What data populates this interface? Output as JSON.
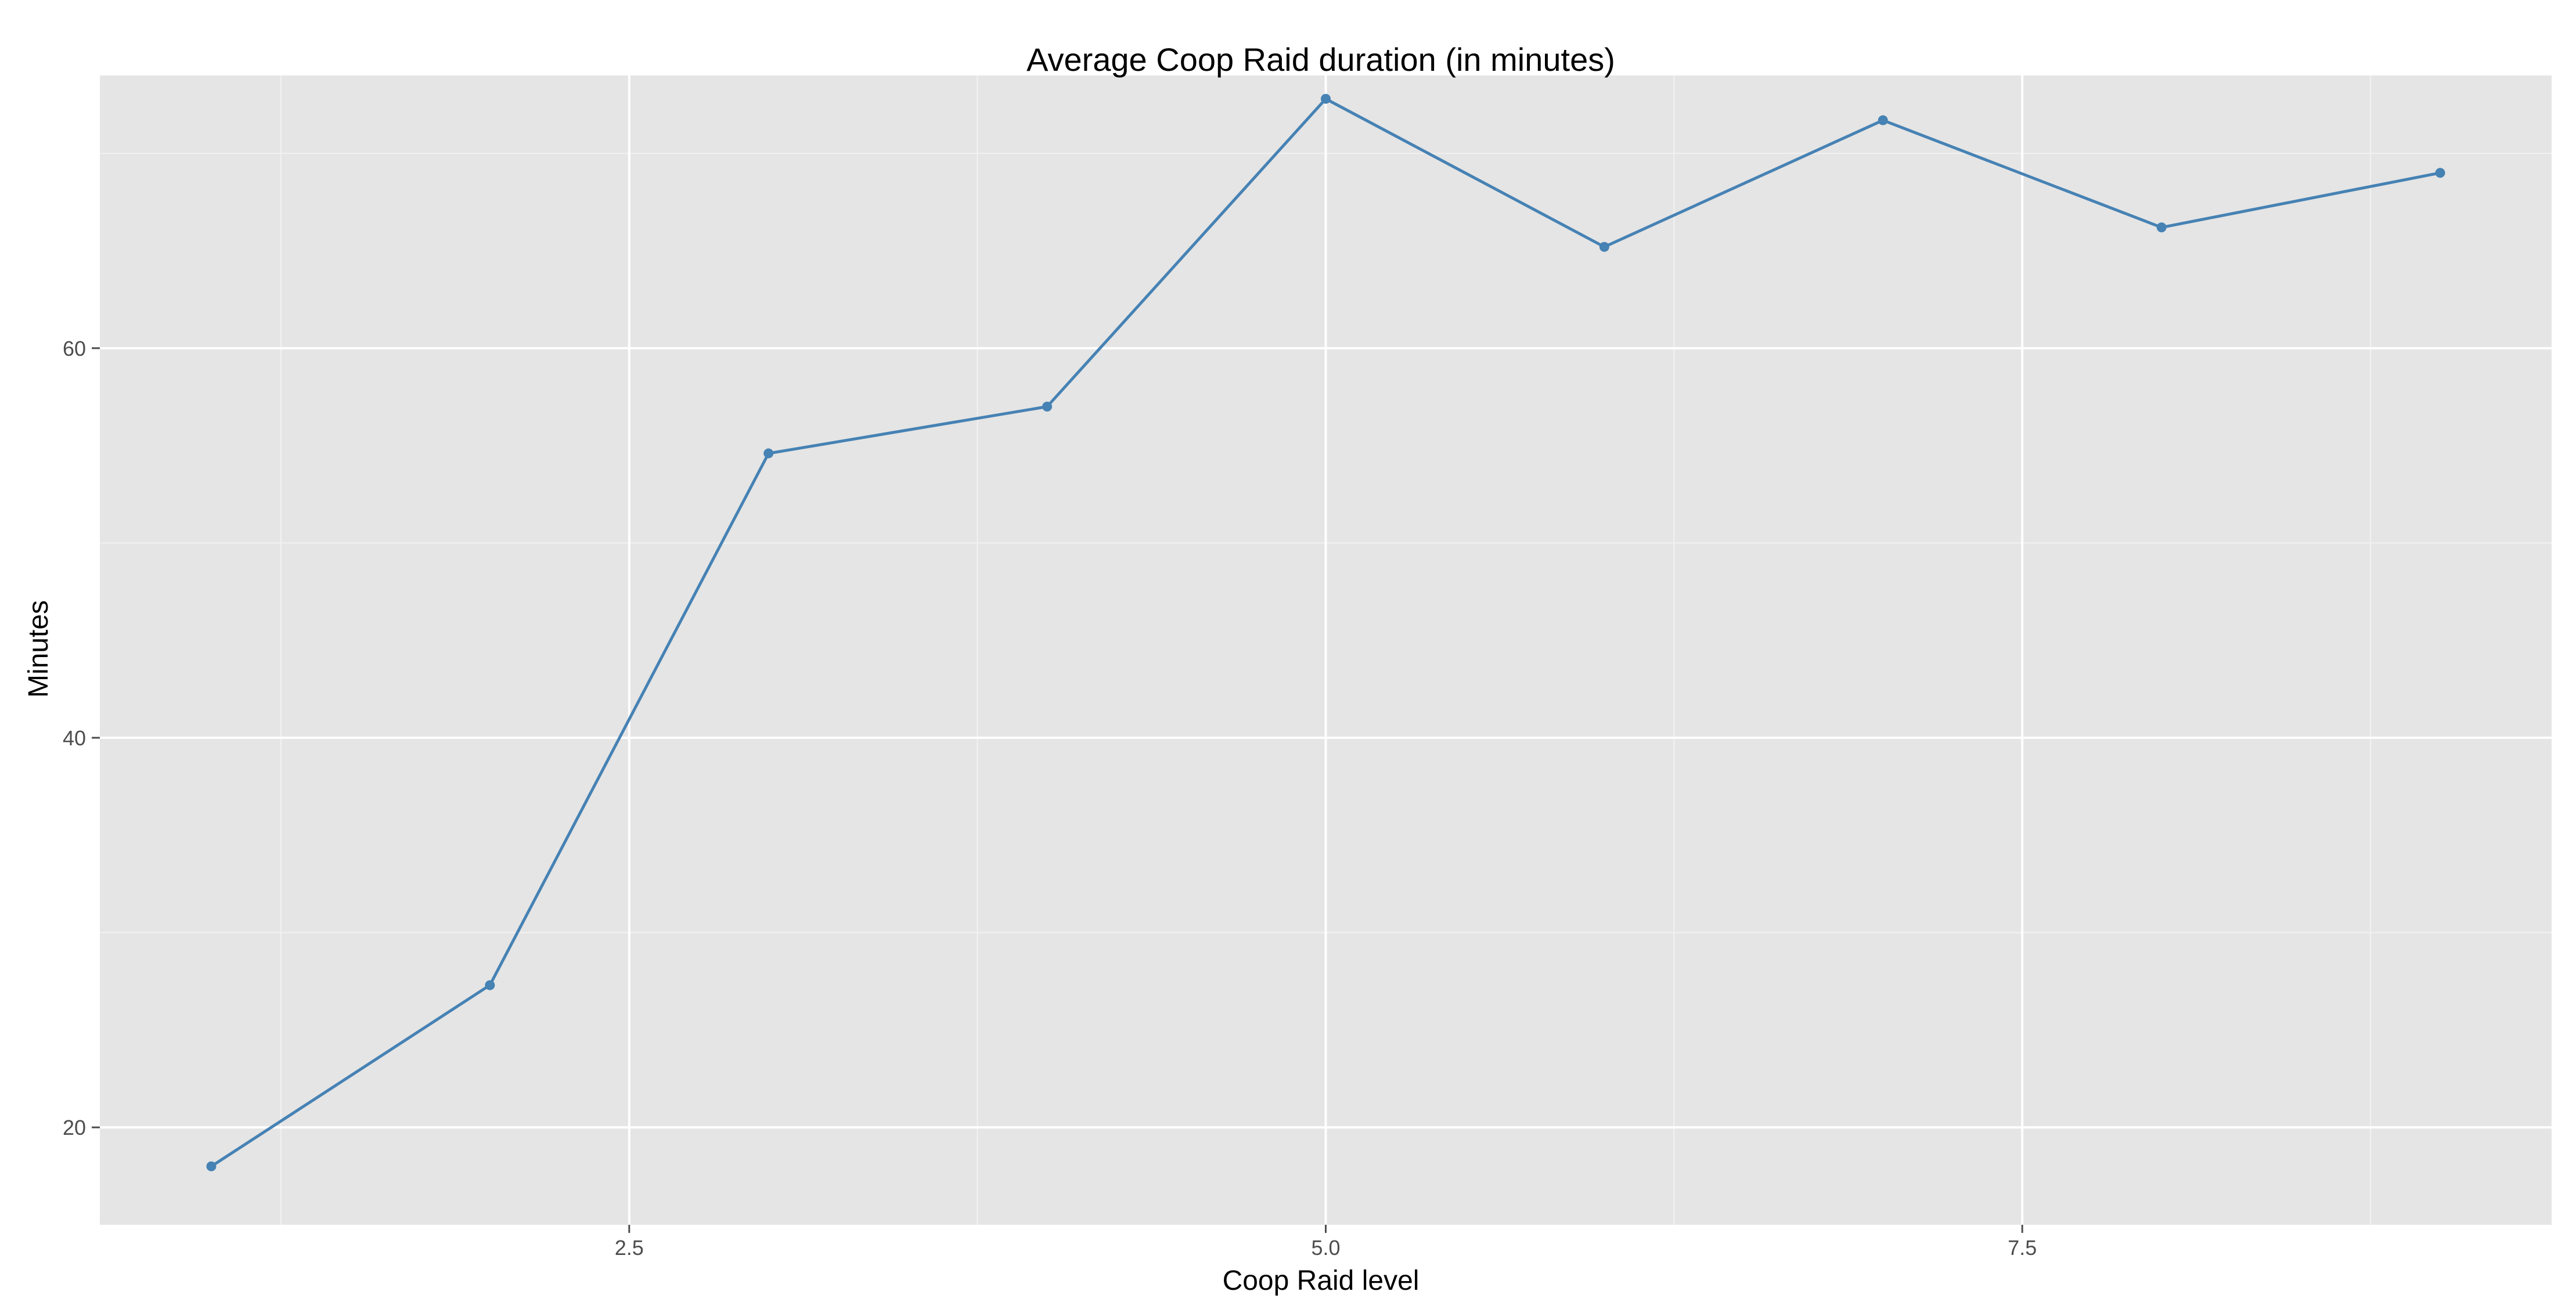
{
  "chart_data": {
    "type": "line",
    "title": "Average Coop Raid duration (in minutes)",
    "xlabel": "Coop Raid level",
    "ylabel": "Minutes",
    "xlim": [
      0.6,
      9.4
    ],
    "ylim": [
      15,
      74
    ],
    "x_ticks": [
      2.5,
      5.0,
      7.5
    ],
    "x_tick_labels": [
      "2.5",
      "5.0",
      "7.5"
    ],
    "x_minor_ticks": [
      1.25,
      3.75,
      6.25,
      8.75
    ],
    "y_ticks": [
      20,
      40,
      60
    ],
    "y_tick_labels": [
      "20",
      "40",
      "60"
    ],
    "y_minor_ticks": [
      30,
      50,
      70
    ],
    "grid": true,
    "legend": "none",
    "colors": {
      "panel": "#e5e5e5",
      "grid_major": "#ffffff",
      "grid_minor": "#f2f2f2",
      "line": "#4682b4",
      "tick": "#4d4d4d"
    },
    "series": [
      {
        "x": [
          1,
          2,
          3,
          4,
          5,
          6,
          7,
          8,
          9
        ],
        "values": [
          18.0,
          27.3,
          54.6,
          57.0,
          72.8,
          65.2,
          71.7,
          66.2,
          69.0
        ]
      }
    ]
  }
}
